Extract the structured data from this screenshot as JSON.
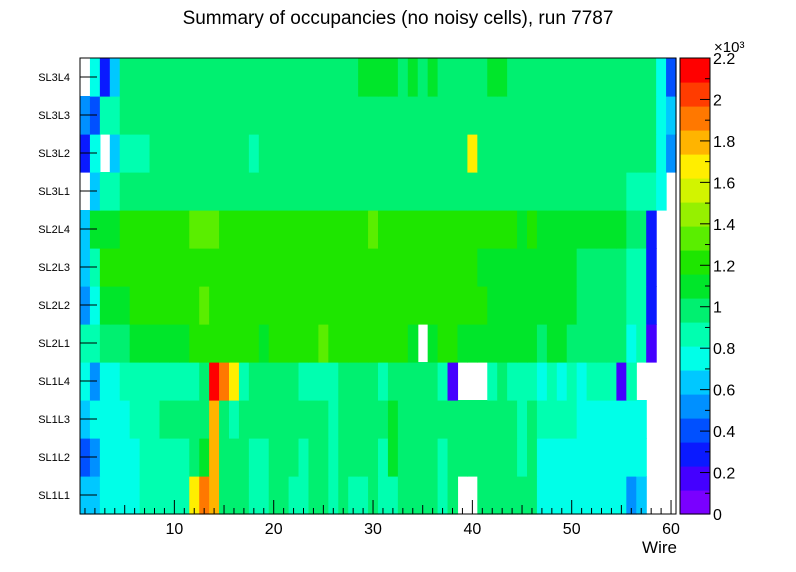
{
  "chart_data": {
    "type": "heatmap",
    "title": "Summary of occupancies (no noisy cells), run 7787",
    "xlabel": "Wire",
    "ylabel": "",
    "xlim": [
      0.5,
      60.5
    ],
    "x_ticks": [
      "10",
      "20",
      "30",
      "40",
      "50",
      "60"
    ],
    "rows": [
      "SL1L1",
      "SL1L2",
      "SL1L3",
      "SL1L4",
      "SL2L1",
      "SL2L2",
      "SL2L3",
      "SL2L4",
      "SL3L1",
      "SL3L2",
      "SL3L3",
      "SL3L4"
    ],
    "zlim": [
      0,
      2200
    ],
    "z_multiplier": "×10³",
    "colorbar_ticks": [
      "0",
      "0.2",
      "0.4",
      "0.6",
      "0.8",
      "1",
      "1.2",
      "1.4",
      "1.6",
      "1.8",
      "2",
      "2.2"
    ],
    "palette": [
      "#7a00ff",
      "#4400ff",
      "#0a1aff",
      "#0050ff",
      "#0090ff",
      "#00c8ff",
      "#00ffe8",
      "#00ffb0",
      "#00f070",
      "#00e62a",
      "#1ee600",
      "#5aee00",
      "#96f000",
      "#d2f400",
      "#ffee00",
      "#ffb400",
      "#ff7800",
      "#ff3c00",
      "#ff0000"
    ],
    "values": [
      [
        580,
        620,
        750,
        750,
        780,
        800,
        860,
        860,
        860,
        860,
        880,
        1700,
        1950,
        1800,
        1000,
        960,
        940,
        880,
        900,
        930,
        1000,
        900,
        900,
        940,
        940,
        880,
        940,
        920,
        900,
        1000,
        880,
        900,
        960,
        940,
        950,
        960,
        880,
        960,
        null,
        null,
        960,
        960,
        960,
        960,
        960,
        940,
        760,
        760,
        760,
        760,
        760,
        760,
        720,
        720,
        720,
        480,
        600,
        null,
        null,
        null
      ],
      [
        440,
        560,
        720,
        720,
        760,
        800,
        860,
        900,
        900,
        900,
        880,
        1000,
        1050,
        1800,
        1000,
        960,
        940,
        900,
        920,
        960,
        1000,
        960,
        920,
        960,
        960,
        920,
        960,
        960,
        940,
        1000,
        920,
        1050,
        960,
        960,
        980,
        960,
        920,
        980,
        960,
        960,
        960,
        960,
        960,
        960,
        900,
        940,
        800,
        800,
        800,
        800,
        760,
        760,
        760,
        760,
        760,
        700,
        760,
        null,
        null,
        null
      ],
      [
        600,
        720,
        780,
        780,
        800,
        860,
        900,
        900,
        940,
        940,
        940,
        960,
        1000,
        1800,
        1000,
        920,
        940,
        940,
        940,
        960,
        980,
        960,
        940,
        940,
        940,
        920,
        940,
        980,
        940,
        1000,
        960,
        1050,
        960,
        960,
        960,
        960,
        960,
        980,
        960,
        960,
        960,
        960,
        960,
        960,
        920,
        940,
        860,
        840,
        840,
        820,
        800,
        800,
        800,
        800,
        780,
        700,
        780,
        null,
        null,
        null
      ],
      [
        720,
        560,
        760,
        800,
        860,
        880,
        900,
        900,
        920,
        920,
        920,
        920,
        960,
        2150,
        1900,
        1650,
        920,
        960,
        960,
        960,
        960,
        940,
        900,
        920,
        920,
        900,
        940,
        960,
        940,
        980,
        920,
        1000,
        980,
        960,
        960,
        960,
        900,
        150,
        null,
        null,
        null,
        900,
        940,
        900,
        860,
        880,
        800,
        840,
        800,
        880,
        780,
        820,
        860,
        860,
        220,
        820,
        null,
        null,
        null,
        null
      ],
      [
        860,
        860,
        960,
        960,
        1040,
        1060,
        1100,
        1100,
        1120,
        1140,
        1140,
        1160,
        1200,
        1220,
        1200,
        1160,
        1200,
        1160,
        1140,
        1160,
        1180,
        1160,
        1180,
        1200,
        1300,
        1180,
        1200,
        1180,
        1200,
        1180,
        1160,
        1200,
        1160,
        1140,
        null,
        1120,
        1160,
        1160,
        1140,
        1120,
        1100,
        1120,
        1060,
        1080,
        1060,
        1060,
        1000,
        1060,
        1060,
        1040,
        1000,
        1000,
        1000,
        1000,
        960,
        800,
        900,
        200,
        null,
        null
      ],
      [
        560,
        700,
        1050,
        1120,
        1120,
        1160,
        1220,
        1180,
        1200,
        1200,
        1200,
        1240,
        1300,
        1260,
        1240,
        1220,
        1240,
        1200,
        1200,
        1220,
        1240,
        1200,
        1220,
        1240,
        1200,
        1200,
        1240,
        1200,
        1220,
        1200,
        1200,
        1240,
        1200,
        1200,
        1220,
        1180,
        1200,
        1180,
        1160,
        1200,
        1160,
        1140,
        1120,
        1120,
        1100,
        1080,
        1060,
        1100,
        1060,
        1060,
        1040,
        1040,
        1020,
        1000,
        1000,
        900,
        880,
        300,
        null,
        null
      ],
      [
        620,
        820,
        1180,
        1180,
        1200,
        1220,
        1200,
        1220,
        1200,
        1240,
        1220,
        1260,
        1240,
        1260,
        1240,
        1220,
        1240,
        1220,
        1220,
        1220,
        1220,
        1240,
        1200,
        1220,
        1220,
        1200,
        1220,
        1220,
        1200,
        1200,
        1200,
        1220,
        1200,
        1180,
        1160,
        1180,
        1180,
        1160,
        1180,
        1160,
        1140,
        1140,
        1140,
        1120,
        1100,
        1100,
        1100,
        1060,
        1060,
        1060,
        1040,
        1040,
        1000,
        1000,
        1000,
        900,
        860,
        300,
        null,
        null
      ],
      [
        640,
        1050,
        1120,
        1140,
        1160,
        1200,
        1220,
        1200,
        1220,
        1260,
        1240,
        1300,
        1360,
        1300,
        1260,
        1220,
        1240,
        1220,
        1200,
        1220,
        1240,
        1200,
        1220,
        1200,
        1220,
        1200,
        1220,
        1220,
        1200,
        1350,
        1220,
        1220,
        1200,
        1200,
        1200,
        1220,
        1200,
        1200,
        1200,
        1180,
        1180,
        1200,
        1180,
        1160,
        1140,
        1160,
        1140,
        1120,
        1120,
        1100,
        1100,
        1100,
        1060,
        1060,
        1060,
        1040,
        940,
        300,
        null,
        null
      ],
      [
        null,
        680,
        860,
        900,
        940,
        960,
        960,
        960,
        960,
        960,
        960,
        960,
        940,
        960,
        960,
        940,
        980,
        960,
        960,
        960,
        980,
        960,
        940,
        1000,
        960,
        960,
        940,
        960,
        980,
        1000,
        1000,
        960,
        960,
        960,
        980,
        960,
        980,
        960,
        960,
        960,
        960,
        960,
        960,
        980,
        960,
        960,
        940,
        940,
        940,
        940,
        940,
        940,
        940,
        940,
        940,
        920,
        920,
        920,
        720,
        null
      ],
      [
        300,
        700,
        null,
        620,
        860,
        900,
        920,
        960,
        960,
        1020,
        940,
        940,
        960,
        960,
        960,
        940,
        960,
        920,
        1000,
        960,
        1000,
        960,
        960,
        980,
        960,
        960,
        960,
        980,
        960,
        980,
        960,
        960,
        940,
        960,
        960,
        960,
        960,
        960,
        960,
        1700,
        960,
        980,
        960,
        1040,
        960,
        960,
        960,
        960,
        960,
        960,
        960,
        960,
        960,
        960,
        940,
        940,
        940,
        940,
        740,
        500
      ],
      [
        500,
        360,
        820,
        900,
        940,
        980,
        980,
        1000,
        1000,
        1000,
        980,
        1000,
        960,
        980,
        1000,
        980,
        960,
        960,
        1000,
        960,
        980,
        980,
        960,
        980,
        980,
        960,
        980,
        980,
        1000,
        1000,
        1000,
        1000,
        1000,
        980,
        980,
        980,
        980,
        1000,
        980,
        1000,
        980,
        980,
        1000,
        1000,
        980,
        980,
        960,
        960,
        960,
        960,
        960,
        960,
        960,
        960,
        960,
        960,
        940,
        940,
        720,
        600
      ],
      [
        null,
        780,
        330,
        600,
        1000,
        1000,
        1020,
        1040,
        1040,
        1040,
        1040,
        1040,
        1040,
        1040,
        1040,
        1040,
        1040,
        1040,
        1040,
        1040,
        1040,
        1040,
        1040,
        1040,
        1040,
        1040,
        1040,
        1040,
        1100,
        1060,
        1060,
        1060,
        1040,
        1080,
        1040,
        1060,
        1040,
        1040,
        1040,
        1040,
        1040,
        1060,
        1060,
        1040,
        1040,
        1040,
        1000,
        1000,
        1000,
        1000,
        1000,
        1000,
        960,
        960,
        960,
        960,
        960,
        960,
        800,
        460
      ]
    ]
  }
}
